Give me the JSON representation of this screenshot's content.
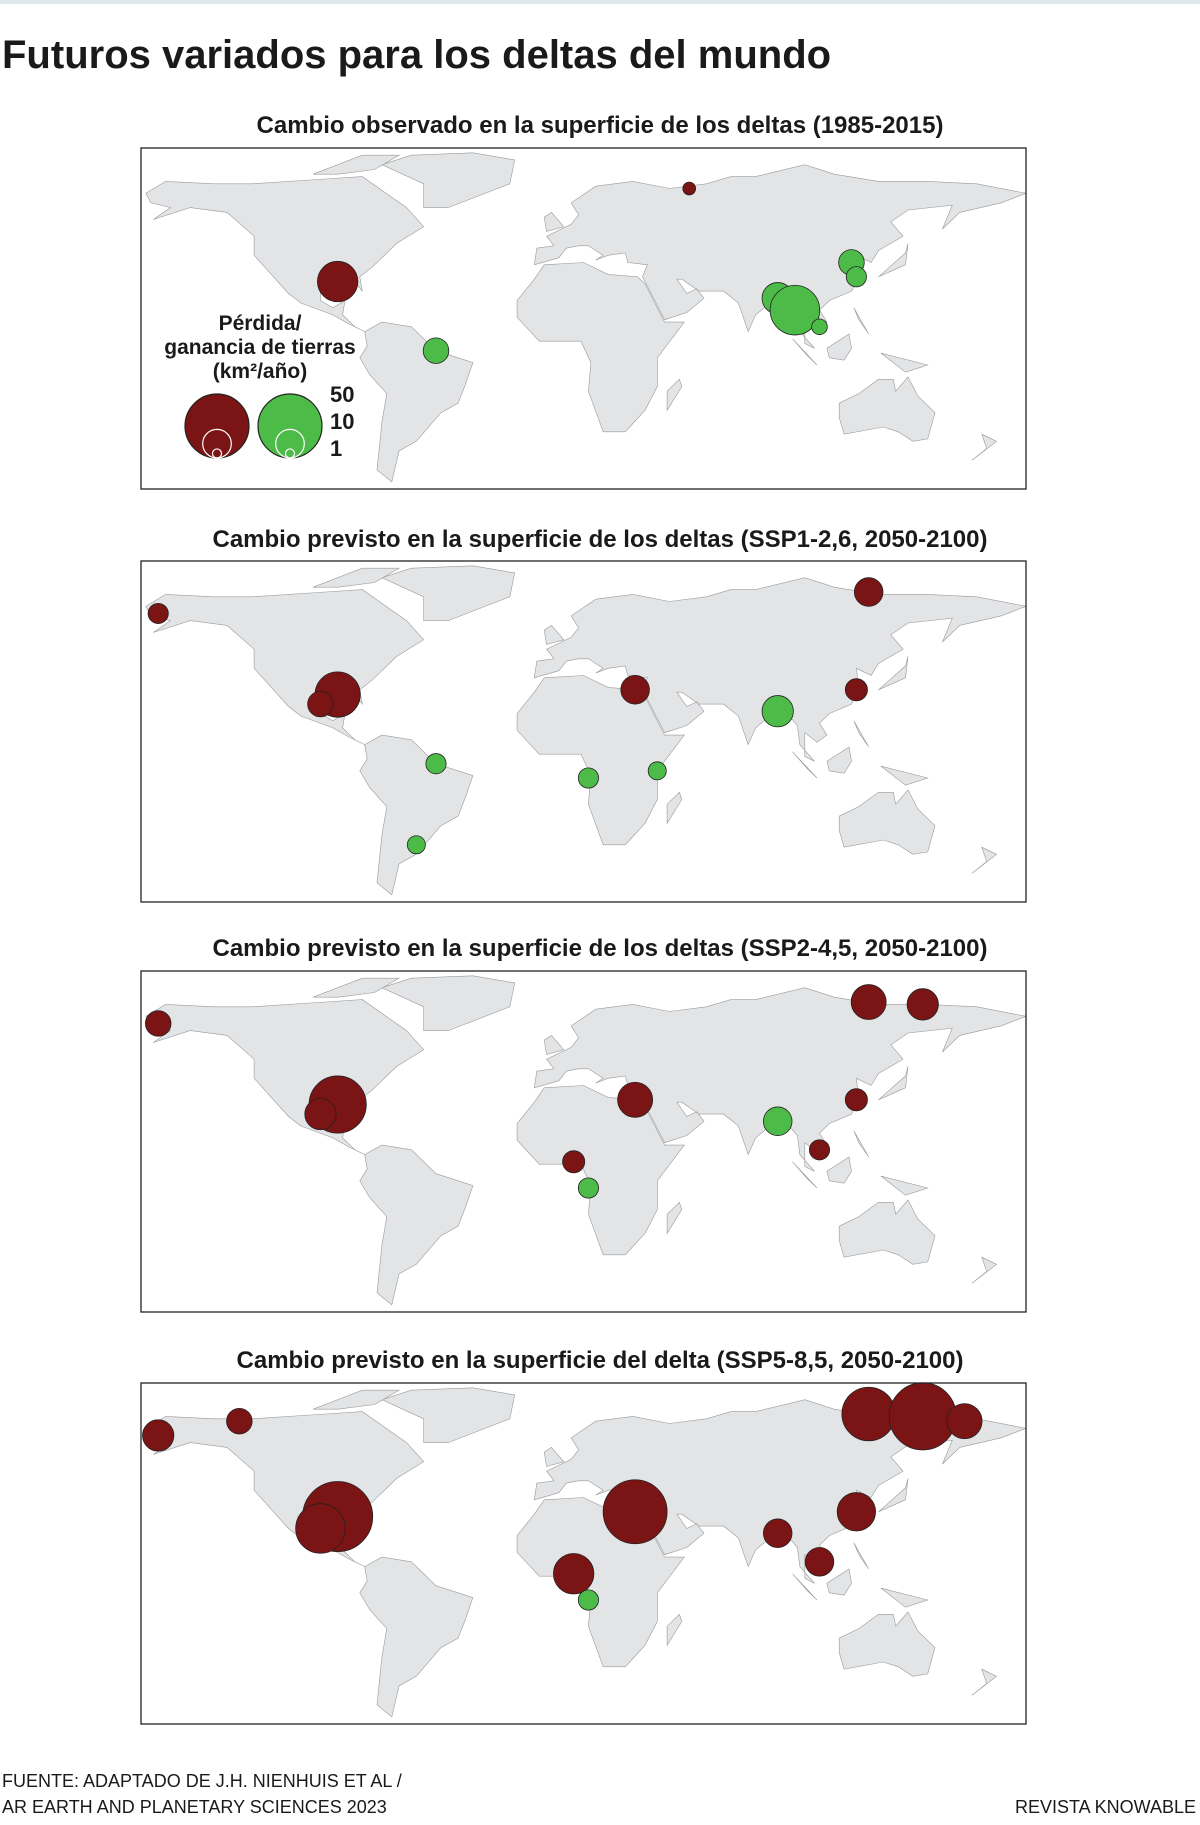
{
  "title": "Futuros variados para los deltas del mundo",
  "legend": {
    "title_lines": [
      "Pérdida/",
      "ganancia de tierras",
      "(km²/año)"
    ],
    "sizes": [
      50,
      10,
      1
    ],
    "loss_color": "#7b1414",
    "gain_color": "#4cbb48"
  },
  "maps": [
    {
      "title": "Cambio observado en la superficie de los deltas (1985-2015)",
      "deltas": [
        {
          "lon": -90,
          "lat": 29,
          "value": -20
        },
        {
          "lon": -50,
          "lat": 0,
          "value": 8
        },
        {
          "lon": 89,
          "lat": 22,
          "value": 12
        },
        {
          "lon": 96,
          "lat": 17,
          "value": 30
        },
        {
          "lon": 119,
          "lat": 37,
          "value": 8
        },
        {
          "lon": 121,
          "lat": 31,
          "value": 5
        },
        {
          "lon": 106,
          "lat": 10,
          "value": 3
        },
        {
          "lon": 53,
          "lat": 68,
          "value": -2
        }
      ]
    },
    {
      "title": "Cambio previsto en la superficie de los deltas (SSP1-2,6, 2050-2100)",
      "deltas": [
        {
          "lon": -90,
          "lat": 29,
          "value": -25
        },
        {
          "lon": -97,
          "lat": 25,
          "value": -8
        },
        {
          "lon": 31,
          "lat": 31,
          "value": -10
        },
        {
          "lon": 89,
          "lat": 22,
          "value": 12
        },
        {
          "lon": 126,
          "lat": 72,
          "value": -10
        },
        {
          "lon": -50,
          "lat": 0,
          "value": 5
        },
        {
          "lon": 12,
          "lat": -6,
          "value": 5
        },
        {
          "lon": -163,
          "lat": 63,
          "value": -5
        },
        {
          "lon": 121,
          "lat": 31,
          "value": -6
        },
        {
          "lon": 40,
          "lat": -3,
          "value": 4
        },
        {
          "lon": -58,
          "lat": -34,
          "value": 4
        }
      ]
    },
    {
      "title": "Cambio previsto en la superficie de los deltas (SSP2-4,5, 2050-2100)",
      "deltas": [
        {
          "lon": -90,
          "lat": 29,
          "value": -40
        },
        {
          "lon": -97,
          "lat": 25,
          "value": -12
        },
        {
          "lon": 31,
          "lat": 31,
          "value": -15
        },
        {
          "lon": 126,
          "lat": 72,
          "value": -15
        },
        {
          "lon": 148,
          "lat": 71,
          "value": -12
        },
        {
          "lon": 89,
          "lat": 22,
          "value": 10
        },
        {
          "lon": -163,
          "lat": 63,
          "value": -8
        },
        {
          "lon": 6,
          "lat": 5,
          "value": -6
        },
        {
          "lon": 12,
          "lat": -6,
          "value": 5
        },
        {
          "lon": 121,
          "lat": 31,
          "value": -6
        },
        {
          "lon": 106,
          "lat": 10,
          "value": -5
        }
      ]
    },
    {
      "title": "Cambio previsto en la superficie del delta (SSP5-8,5, 2050-2100)",
      "deltas": [
        {
          "lon": -90,
          "lat": 29,
          "value": -60
        },
        {
          "lon": -97,
          "lat": 24,
          "value": -30
        },
        {
          "lon": 31,
          "lat": 31,
          "value": -50
        },
        {
          "lon": 126,
          "lat": 72,
          "value": -35
        },
        {
          "lon": 148,
          "lat": 71,
          "value": -55
        },
        {
          "lon": 165,
          "lat": 69,
          "value": -15
        },
        {
          "lon": -163,
          "lat": 63,
          "value": -12
        },
        {
          "lon": 6,
          "lat": 5,
          "value": -20
        },
        {
          "lon": 106,
          "lat": 10,
          "value": -10
        },
        {
          "lon": 121,
          "lat": 31,
          "value": -18
        },
        {
          "lon": 12,
          "lat": -6,
          "value": 5
        },
        {
          "lon": -130,
          "lat": 69,
          "value": -8
        },
        {
          "lon": 89,
          "lat": 22,
          "value": -10
        }
      ]
    }
  ],
  "footer": {
    "source_line1": "FUENTE: ADAPTADO DE J.H. NIENHUIS ET AL /",
    "source_line2": "AR EARTH AND PLANETARY SCIENCES 2023",
    "credit": "REVISTA KNOWABLE"
  }
}
